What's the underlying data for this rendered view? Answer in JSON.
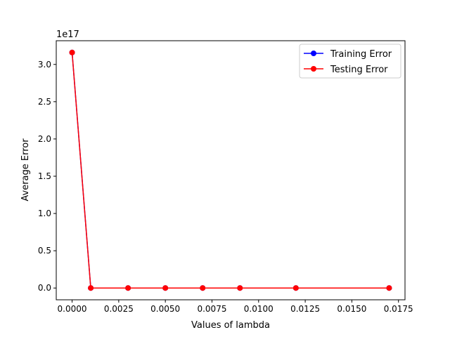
{
  "chart_data": {
    "type": "line",
    "title": "",
    "xlabel": "Values of lambda",
    "ylabel": "Average Error",
    "y_offset_label": "1e17",
    "y_unit_multiplier": 1e+17,
    "xlim": [
      -0.00085,
      0.01785
    ],
    "ylim": [
      -0.158,
      3.318
    ],
    "x_ticks": [
      0.0,
      0.0025,
      0.005,
      0.0075,
      0.01,
      0.0125,
      0.015,
      0.0175
    ],
    "x_tick_labels": [
      "0.0000",
      "0.0025",
      "0.0050",
      "0.0075",
      "0.0100",
      "0.0125",
      "0.0150",
      "0.0175"
    ],
    "y_ticks": [
      0.0,
      0.5,
      1.0,
      1.5,
      2.0,
      2.5,
      3.0
    ],
    "y_tick_labels": [
      "0.0",
      "0.5",
      "1.0",
      "1.5",
      "2.0",
      "2.5",
      "3.0"
    ],
    "grid": false,
    "legend_position": "top-right",
    "x": [
      0.0,
      0.001,
      0.003,
      0.005,
      0.007,
      0.009,
      0.012,
      0.017
    ],
    "series": [
      {
        "name": "Training Error",
        "color": "#0000ff",
        "marker": "circle",
        "values": [
          3.16,
          0,
          0,
          0,
          0,
          0,
          0,
          0
        ]
      },
      {
        "name": "Testing Error",
        "color": "#ff0000",
        "marker": "circle",
        "values": [
          3.16,
          0,
          0,
          0,
          0,
          0,
          0,
          0
        ]
      }
    ]
  }
}
